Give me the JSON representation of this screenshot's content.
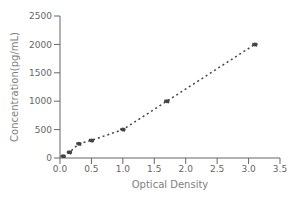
{
  "chart_data": {
    "type": "line",
    "x": [
      0.05,
      0.15,
      0.3,
      0.5,
      1.0,
      1.7,
      3.1
    ],
    "values": [
      30,
      100,
      250,
      310,
      500,
      1000,
      2000
    ],
    "xlabel": "Optical Density",
    "ylabel": "Concentration(pg/mL)",
    "xlim": [
      0,
      3.5
    ],
    "ylim": [
      0,
      2500
    ],
    "xticks": [
      {
        "value": 0,
        "label": "0.0"
      },
      0.5,
      {
        "value": 1,
        "label": "1.0"
      },
      1.5,
      {
        "value": 2,
        "label": "2.0"
      },
      2.5,
      {
        "value": 3,
        "label": "3.0"
      },
      3.5
    ],
    "yticks": [
      0,
      500,
      1000,
      1500,
      2000,
      2500
    ],
    "color": "#444444",
    "marker": "dot",
    "line_style": "dotted",
    "grid": false
  }
}
